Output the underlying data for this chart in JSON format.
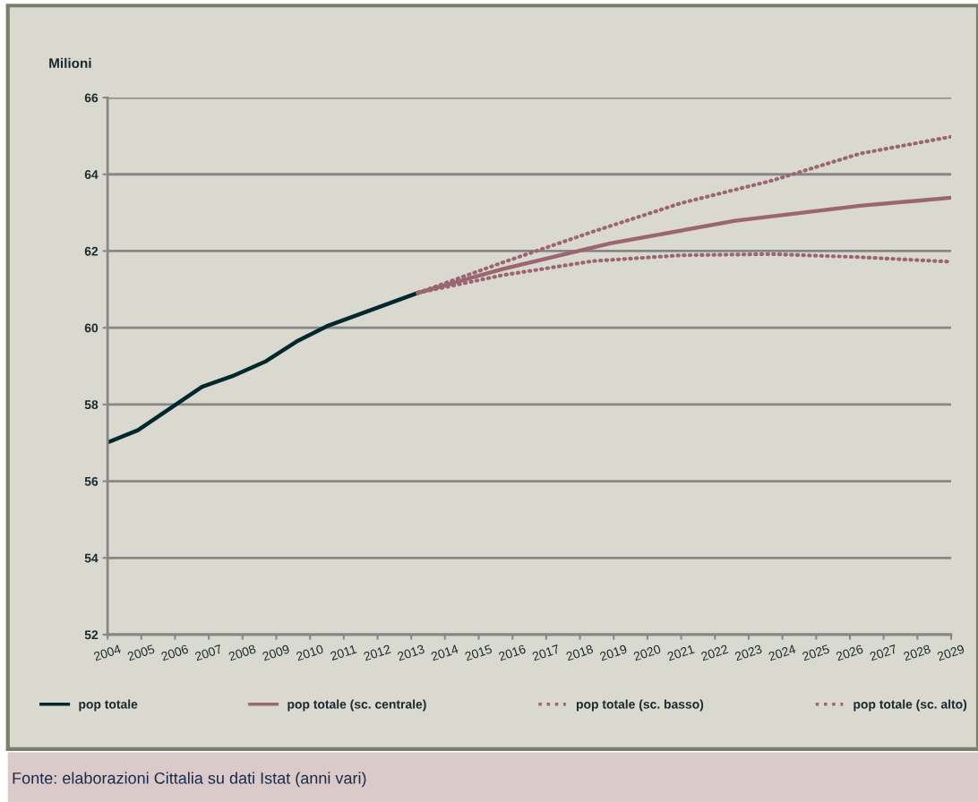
{
  "chart_data": {
    "type": "line",
    "ylabel": "Milioni",
    "xlim": [
      2004,
      2029
    ],
    "xticks": [
      2004,
      2005,
      2006,
      2007,
      2008,
      2009,
      2010,
      2011,
      2012,
      2013,
      2014,
      2015,
      2016,
      2017,
      2018,
      2019,
      2020,
      2021,
      2022,
      2023,
      2024,
      2025,
      2026,
      2027,
      2028,
      2029
    ],
    "ylim": [
      52,
      66
    ],
    "yticks": [
      52,
      54,
      56,
      58,
      60,
      62,
      64,
      66
    ],
    "grid": "y",
    "legend": "bottom",
    "marker": "none",
    "series": [
      {
        "name": "pop totale",
        "color": "#00282d",
        "line_style": "solid",
        "x": [
          2004,
          2004.9,
          2006.8,
          2007.7,
          2008.7,
          2009.6,
          2010.5,
          2013.2
        ],
        "values": [
          57.01,
          57.33,
          58.46,
          58.74,
          59.13,
          59.64,
          60.04,
          60.91
        ]
      },
      {
        "name": "pop totale (sc. centrale)",
        "color": "#9b6672",
        "line_style": "solid",
        "x": [
          2013.2,
          2015.7,
          2018.9,
          2022.6,
          2026.3,
          2029
        ],
        "values": [
          60.91,
          61.53,
          62.2,
          62.79,
          63.18,
          63.39
        ]
      },
      {
        "name": "pop totale (sc. basso)",
        "color": "#9b6672",
        "line_style": "dotted",
        "x": [
          2013.2,
          2015.7,
          2018.4,
          2021.0,
          2023.7,
          2026.3,
          2029
        ],
        "values": [
          60.91,
          61.37,
          61.74,
          61.89,
          61.92,
          61.84,
          61.72
        ]
      },
      {
        "name": "pop totale (sc. alto)",
        "color": "#9b6672",
        "line_style": "dotted",
        "x": [
          2013.2,
          2015.7,
          2018.4,
          2021.0,
          2023.7,
          2026.3,
          2029
        ],
        "values": [
          60.91,
          61.7,
          62.51,
          63.25,
          63.84,
          64.54,
          64.98
        ]
      }
    ],
    "annotations": [
      "Fonte: elaborazioni Cittalia su dati Istat (anni vari)"
    ]
  }
}
